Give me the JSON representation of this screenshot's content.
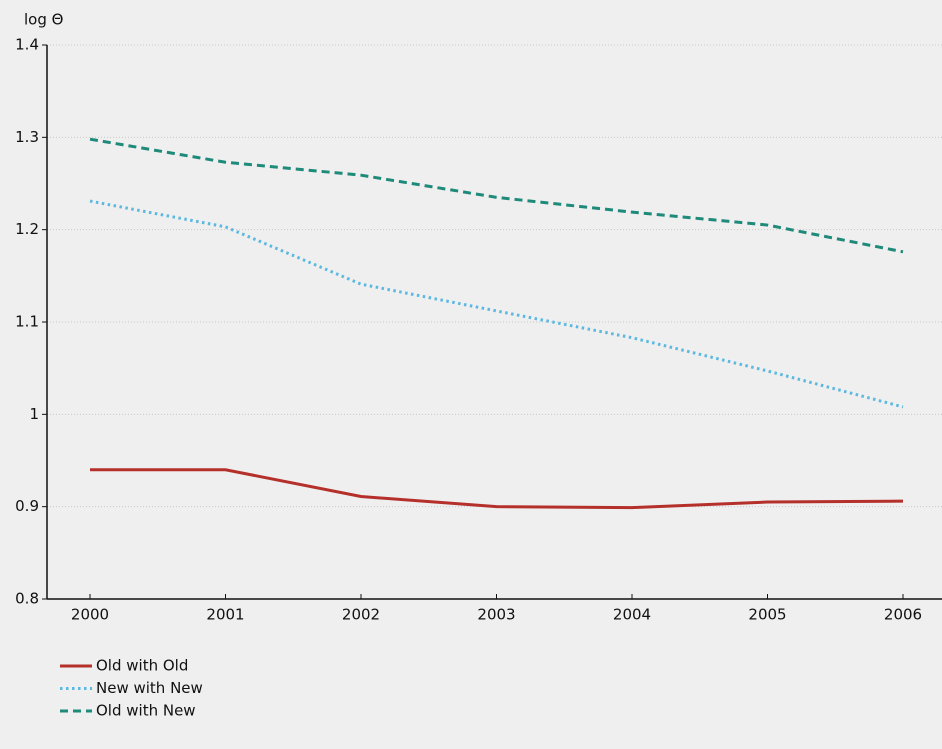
{
  "chart_data": {
    "type": "line",
    "y_label": "log Θ",
    "categories": [
      "2000",
      "2001",
      "2002",
      "2003",
      "2004",
      "2005",
      "2006"
    ],
    "series": [
      {
        "name": "Old with Old",
        "color": "#b5302a",
        "dash": "solid",
        "values": [
          0.94,
          0.94,
          0.911,
          0.9,
          0.899,
          0.905,
          0.906
        ]
      },
      {
        "name": "New with New",
        "color": "#5bb8e0",
        "dash": "dotted",
        "values": [
          1.231,
          1.203,
          1.141,
          1.112,
          1.083,
          1.047,
          1.008
        ]
      },
      {
        "name": "Old with New",
        "color": "#1e8a7a",
        "dash": "dashed",
        "values": [
          1.298,
          1.273,
          1.259,
          1.235,
          1.219,
          1.205,
          1.176
        ]
      }
    ],
    "ylim": [
      0.8,
      1.4
    ],
    "yticks": [
      0.8,
      0.9,
      1,
      1.1,
      1.2,
      1.3,
      1.4
    ],
    "grid": true,
    "legend": "bottom-left"
  }
}
